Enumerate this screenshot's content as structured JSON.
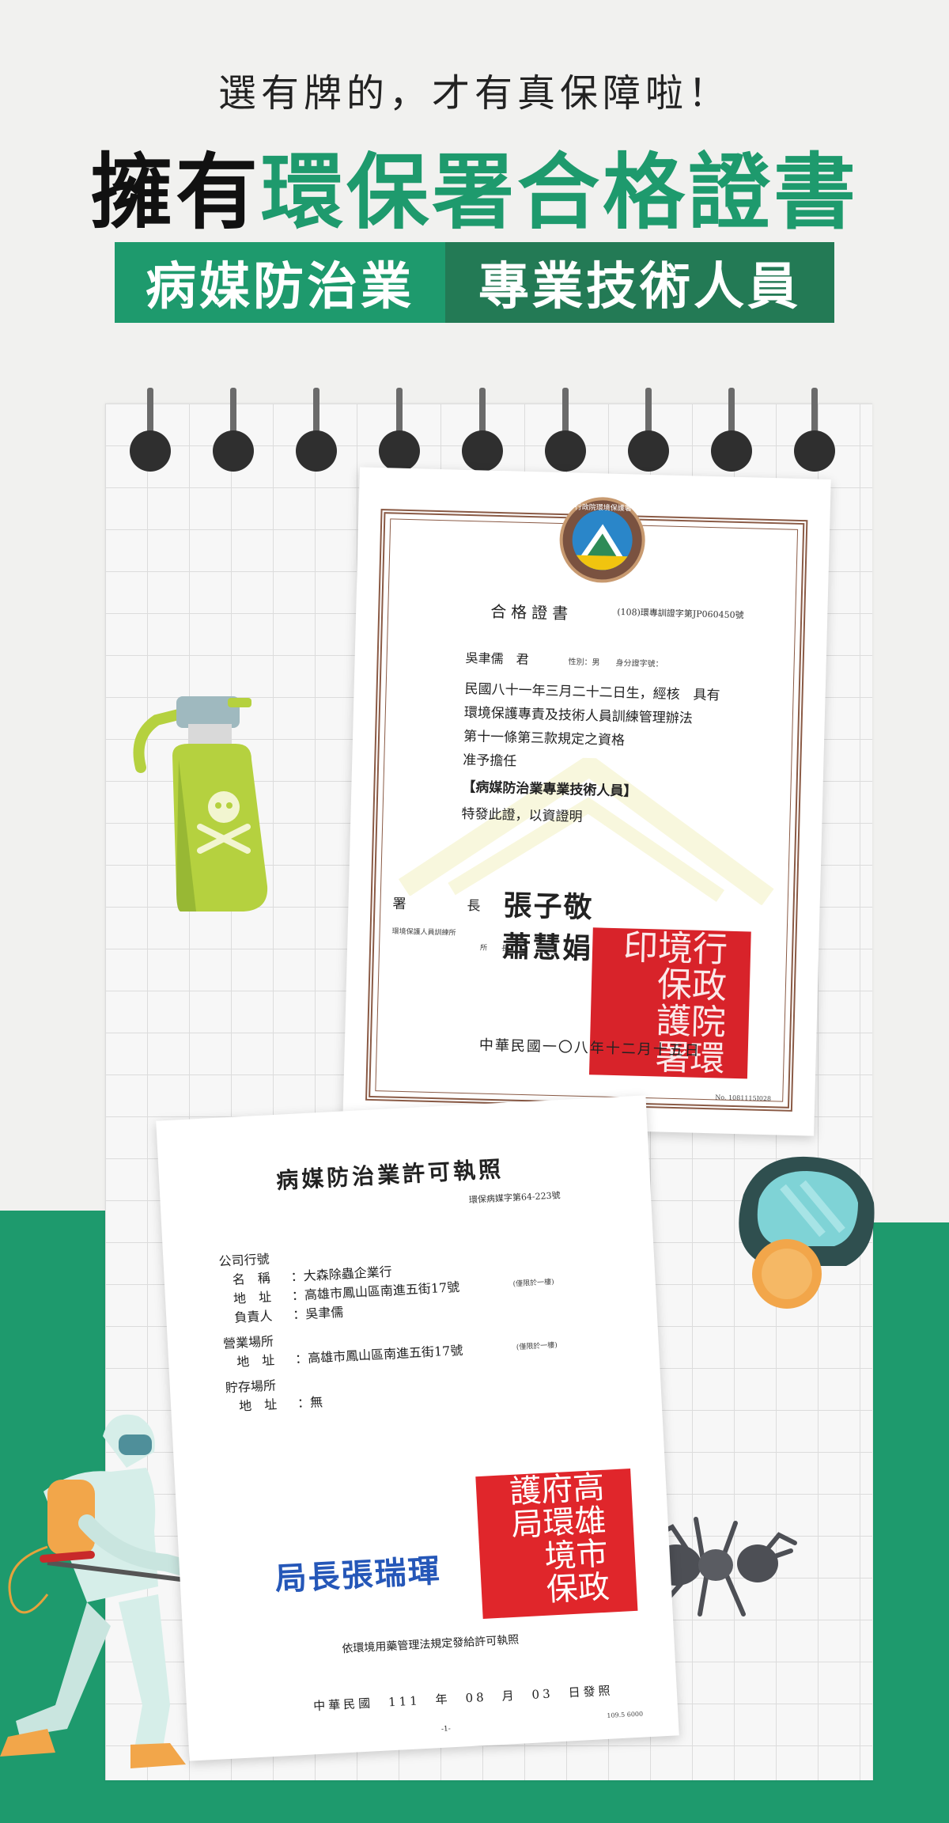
{
  "header": {
    "tagline": "選有牌的，才有真保障啦！",
    "headline_black": "擁有",
    "headline_green": "環保署合格證書",
    "banner_left": "病媒防治業",
    "banner_right": "專業技術人員"
  },
  "colors": {
    "brand_green": "#1e9a6d",
    "dark_green": "#237a55",
    "stamp_red": "#d8232a",
    "signature_blue": "#2557b8"
  },
  "certificate_1": {
    "seal_text": "行政院環境保護署",
    "title": "合格證書",
    "number": "(108)環專訓證字第JP060450號",
    "name": "吳聿儒　君",
    "meta": "性別：男　　身分證字號：",
    "lines": [
      "民國八十一年三月二十二日生，經核　具有",
      "環境保護專責及技術人員訓練管理辦法",
      "第十一條第三款規定之資格",
      "准予擔任",
      "【病媒防治業專業技術人員】",
      "特發此證，以資證明"
    ],
    "role_director": "署　長",
    "signature_director": "張子敬",
    "role_institute": "環境保護人員訓練所",
    "role_institute_suffix": "所　　長",
    "signature_institute": "蕭慧娟",
    "stamp_text": "行政院環境保護署印",
    "date": "中華民國一〇八年十二月十五日",
    "serial": "No. 1081115I028"
  },
  "certificate_2": {
    "title": "病媒防治業許可執照",
    "number": "環保病媒字第64-223號",
    "fields": [
      {
        "label": "公司行號",
        "value": ""
      },
      {
        "label": "　名　稱",
        "value": "：大森除蟲企業行"
      },
      {
        "label": "　地　址",
        "value": "：高雄市鳳山區南進五街17號",
        "note": "(僅限於一樓)"
      },
      {
        "label": "　負責人",
        "value": "：吳聿儒"
      },
      {
        "label": "營業場所",
        "value": ""
      },
      {
        "label": "　地　址",
        "value": "：高雄市鳳山區南進五街17號",
        "note": "(僅限於一樓)"
      },
      {
        "label": "貯存場所",
        "value": ""
      },
      {
        "label": "　地　址",
        "value": "：無"
      }
    ],
    "chief_signature": "局長張瑞琿",
    "stamp_text": "高雄市政府環境保護局",
    "law_text": "依環境用藥管理法規定發給許可執照",
    "date": "中華民國　111　年　08　月　03　日發照",
    "page": "-1-",
    "serial": "109.5 6000"
  },
  "illustrations": {
    "spray_bottle": "poison-spray-bottle-icon",
    "gas_mask": "gas-mask-icon",
    "ant": "ant-icon",
    "worker": "pest-control-worker"
  }
}
